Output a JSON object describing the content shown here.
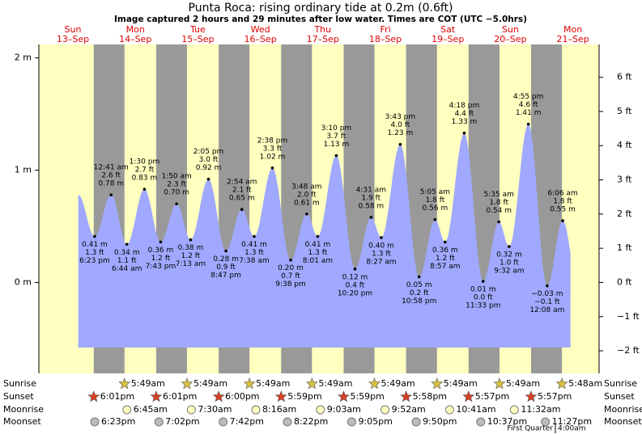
{
  "chart_data": {
    "type": "tide",
    "title": "Punta Roca: rising  ordinary tide at 0.2m (0.6ft)",
    "subtitle": "Image captured 2 hours and 29 minutes after low water. Times are COT (UTC −5.0hrs)",
    "ylim": [
      -0.81,
      2.12
    ],
    "yticks": [
      {
        "value": 0,
        "label": "0 m"
      },
      {
        "value": 1,
        "label": "1 m"
      },
      {
        "value": 2,
        "label": "2 m"
      }
    ],
    "y2lim": [
      -2.66,
      6.96
    ],
    "y2ticks": [
      {
        "value": -2,
        "label": "−2 ft"
      },
      {
        "value": -1,
        "label": "−1 ft"
      },
      {
        "value": 0,
        "label": "0 ft"
      },
      {
        "value": 1,
        "label": "1 ft"
      },
      {
        "value": 2,
        "label": "2 ft"
      },
      {
        "value": 3,
        "label": "3 ft"
      },
      {
        "value": 4,
        "label": "4 ft"
      },
      {
        "value": 5,
        "label": "5 ft"
      },
      {
        "value": 6,
        "label": "6 ft"
      }
    ],
    "colors": {
      "water": "#a0a9ff",
      "day": "#ffffc0",
      "night": "#999999"
    },
    "row_labels": [
      "Sunrise",
      "Sunset",
      "Moonrise",
      "Moonset"
    ],
    "days": [
      {
        "weekday": "Sun",
        "date": "13–Sep",
        "sunrise": null,
        "sunset": "6:01pm",
        "moonrise": null,
        "moonset": "6:23pm",
        "tides": [
          {
            "time": "6:23 pm",
            "ft": {
              "value": 1.3,
              "label": "1.3 ft"
            },
            "m": {
              "value": 0.41,
              "label": "0.41 m"
            }
          }
        ]
      },
      {
        "weekday": "Mon",
        "date": "14–Sep",
        "sunrise": "5:49am",
        "sunset": "6:01pm",
        "moonrise": "6:45am",
        "moonset": "7:02pm",
        "tides": [
          {
            "time": "12:41 am",
            "ft": {
              "value": 2.6,
              "label": "2.6 ft"
            },
            "m": {
              "value": 0.78,
              "label": "0.78 m"
            }
          },
          {
            "time": "6:44 am",
            "ft": {
              "value": 1.1,
              "label": "1.1 ft"
            },
            "m": {
              "value": 0.34,
              "label": "0.34 m"
            }
          },
          {
            "time": "1:30 pm",
            "ft": {
              "value": 2.7,
              "label": "2.7 ft"
            },
            "m": {
              "value": 0.83,
              "label": "0.83 m"
            }
          },
          {
            "time": "7:43 pm",
            "ft": {
              "value": 1.2,
              "label": "1.2 ft"
            },
            "m": {
              "value": 0.36,
              "label": "0.36 m"
            }
          }
        ]
      },
      {
        "weekday": "Tue",
        "date": "15–Sep",
        "sunrise": "5:49am",
        "sunset": "6:00pm",
        "moonrise": "7:30am",
        "moonset": "7:42pm",
        "tides": [
          {
            "time": "1:50 am",
            "ft": {
              "value": 2.3,
              "label": "2.3 ft"
            },
            "m": {
              "value": 0.7,
              "label": "0.70 m"
            }
          },
          {
            "time": "7:13 am",
            "ft": {
              "value": 1.2,
              "label": "1.2 ft"
            },
            "m": {
              "value": 0.38,
              "label": "0.38 m"
            }
          },
          {
            "time": "2:05 pm",
            "ft": {
              "value": 3.0,
              "label": "3.0 ft"
            },
            "m": {
              "value": 0.92,
              "label": "0.92 m"
            }
          },
          {
            "time": "8:47 pm",
            "ft": {
              "value": 0.9,
              "label": "0.9 ft"
            },
            "m": {
              "value": 0.28,
              "label": "0.28 m"
            }
          }
        ]
      },
      {
        "weekday": "Wed",
        "date": "16–Sep",
        "sunrise": "5:49am",
        "sunset": "5:59pm",
        "moonrise": "8:16am",
        "moonset": "8:22pm",
        "tides": [
          {
            "time": "2:54 am",
            "ft": {
              "value": 2.1,
              "label": "2.1 ft"
            },
            "m": {
              "value": 0.65,
              "label": "0.65 m"
            }
          },
          {
            "time": "7:38 am",
            "ft": {
              "value": 1.3,
              "label": "1.3 ft"
            },
            "m": {
              "value": 0.41,
              "label": "0.41 m"
            }
          },
          {
            "time": "2:38 pm",
            "ft": {
              "value": 3.3,
              "label": "3.3 ft"
            },
            "m": {
              "value": 1.02,
              "label": "1.02 m"
            }
          },
          {
            "time": "9:38 pm",
            "ft": {
              "value": 0.7,
              "label": "0.7 ft"
            },
            "m": {
              "value": 0.2,
              "label": "0.20 m"
            }
          }
        ]
      },
      {
        "weekday": "Thu",
        "date": "17–Sep",
        "sunrise": "5:49am",
        "sunset": "5:59pm",
        "moonrise": "9:03am",
        "moonset": "9:05pm",
        "tides": [
          {
            "time": "3:48 am",
            "ft": {
              "value": 2.0,
              "label": "2.0 ft"
            },
            "m": {
              "value": 0.61,
              "label": "0.61 m"
            }
          },
          {
            "time": "8:01 am",
            "ft": {
              "value": 1.3,
              "label": "1.3 ft"
            },
            "m": {
              "value": 0.41,
              "label": "0.41 m"
            }
          },
          {
            "time": "3:10 pm",
            "ft": {
              "value": 3.7,
              "label": "3.7 ft"
            },
            "m": {
              "value": 1.13,
              "label": "1.13 m"
            }
          },
          {
            "time": "10:20 pm",
            "ft": {
              "value": 0.4,
              "label": "0.4 ft"
            },
            "m": {
              "value": 0.12,
              "label": "0.12 m"
            }
          }
        ]
      },
      {
        "weekday": "Fri",
        "date": "18–Sep",
        "sunrise": "5:49am",
        "sunset": "5:58pm",
        "moonrise": "9:52am",
        "moonset": "9:50pm",
        "tides": [
          {
            "time": "4:31 am",
            "ft": {
              "value": 1.9,
              "label": "1.9 ft"
            },
            "m": {
              "value": 0.58,
              "label": "0.58 m"
            }
          },
          {
            "time": "8:27 am",
            "ft": {
              "value": 1.3,
              "label": "1.3 ft"
            },
            "m": {
              "value": 0.4,
              "label": "0.40 m"
            }
          },
          {
            "time": "3:43 pm",
            "ft": {
              "value": 4.0,
              "label": "4.0 ft"
            },
            "m": {
              "value": 1.23,
              "label": "1.23 m"
            }
          },
          {
            "time": "10:58 pm",
            "ft": {
              "value": 0.2,
              "label": "0.2 ft"
            },
            "m": {
              "value": 0.05,
              "label": "0.05 m"
            }
          }
        ]
      },
      {
        "weekday": "Sat",
        "date": "19–Sep",
        "sunrise": "5:49am",
        "sunset": "5:57pm",
        "moonrise": "10:41am",
        "moonset": "10:37pm",
        "tides": [
          {
            "time": "5:05 am",
            "ft": {
              "value": 1.8,
              "label": "1.8 ft"
            },
            "m": {
              "value": 0.56,
              "label": "0.56 m"
            }
          },
          {
            "time": "8:57 am",
            "ft": {
              "value": 1.2,
              "label": "1.2 ft"
            },
            "m": {
              "value": 0.36,
              "label": "0.36 m"
            }
          },
          {
            "time": "4:18 pm",
            "ft": {
              "value": 4.4,
              "label": "4.4 ft"
            },
            "m": {
              "value": 1.33,
              "label": "1.33 m"
            }
          },
          {
            "time": "11:33 pm",
            "ft": {
              "value": 0.0,
              "label": "0.0 ft"
            },
            "m": {
              "value": 0.01,
              "label": "0.01 m"
            }
          }
        ]
      },
      {
        "weekday": "Sun",
        "date": "20–Sep",
        "sunrise": "5:49am",
        "sunset": "5:57pm",
        "moonrise": "11:32am",
        "moonset": "11:27pm",
        "tides": [
          {
            "time": "5:35 am",
            "ft": {
              "value": 1.8,
              "label": "1.8 ft"
            },
            "m": {
              "value": 0.54,
              "label": "0.54 m"
            }
          },
          {
            "time": "9:32 am",
            "ft": {
              "value": 1.0,
              "label": "1.0 ft"
            },
            "m": {
              "value": 0.32,
              "label": "0.32 m"
            }
          },
          {
            "time": "4:55 pm",
            "ft": {
              "value": 4.6,
              "label": "4.6 ft"
            },
            "m": {
              "value": 1.41,
              "label": "1.41 m"
            }
          }
        ]
      },
      {
        "weekday": "Mon",
        "date": "21–Sep",
        "sunrise": "5:48am",
        "sunset": null,
        "moonrise": null,
        "moonset": null,
        "tides": [
          {
            "time": "12:08 am",
            "ft": {
              "value": -0.1,
              "label": "−0.1 ft"
            },
            "m": {
              "value": -0.03,
              "label": "−0.03 m"
            }
          },
          {
            "time": "6:06 am",
            "ft": {
              "value": 1.8,
              "label": "1.8 ft"
            },
            "m": {
              "value": 0.55,
              "label": "0.55 m"
            }
          }
        ]
      }
    ],
    "moon_phase": {
      "name": "First Quarter",
      "time": "4:00am"
    }
  }
}
